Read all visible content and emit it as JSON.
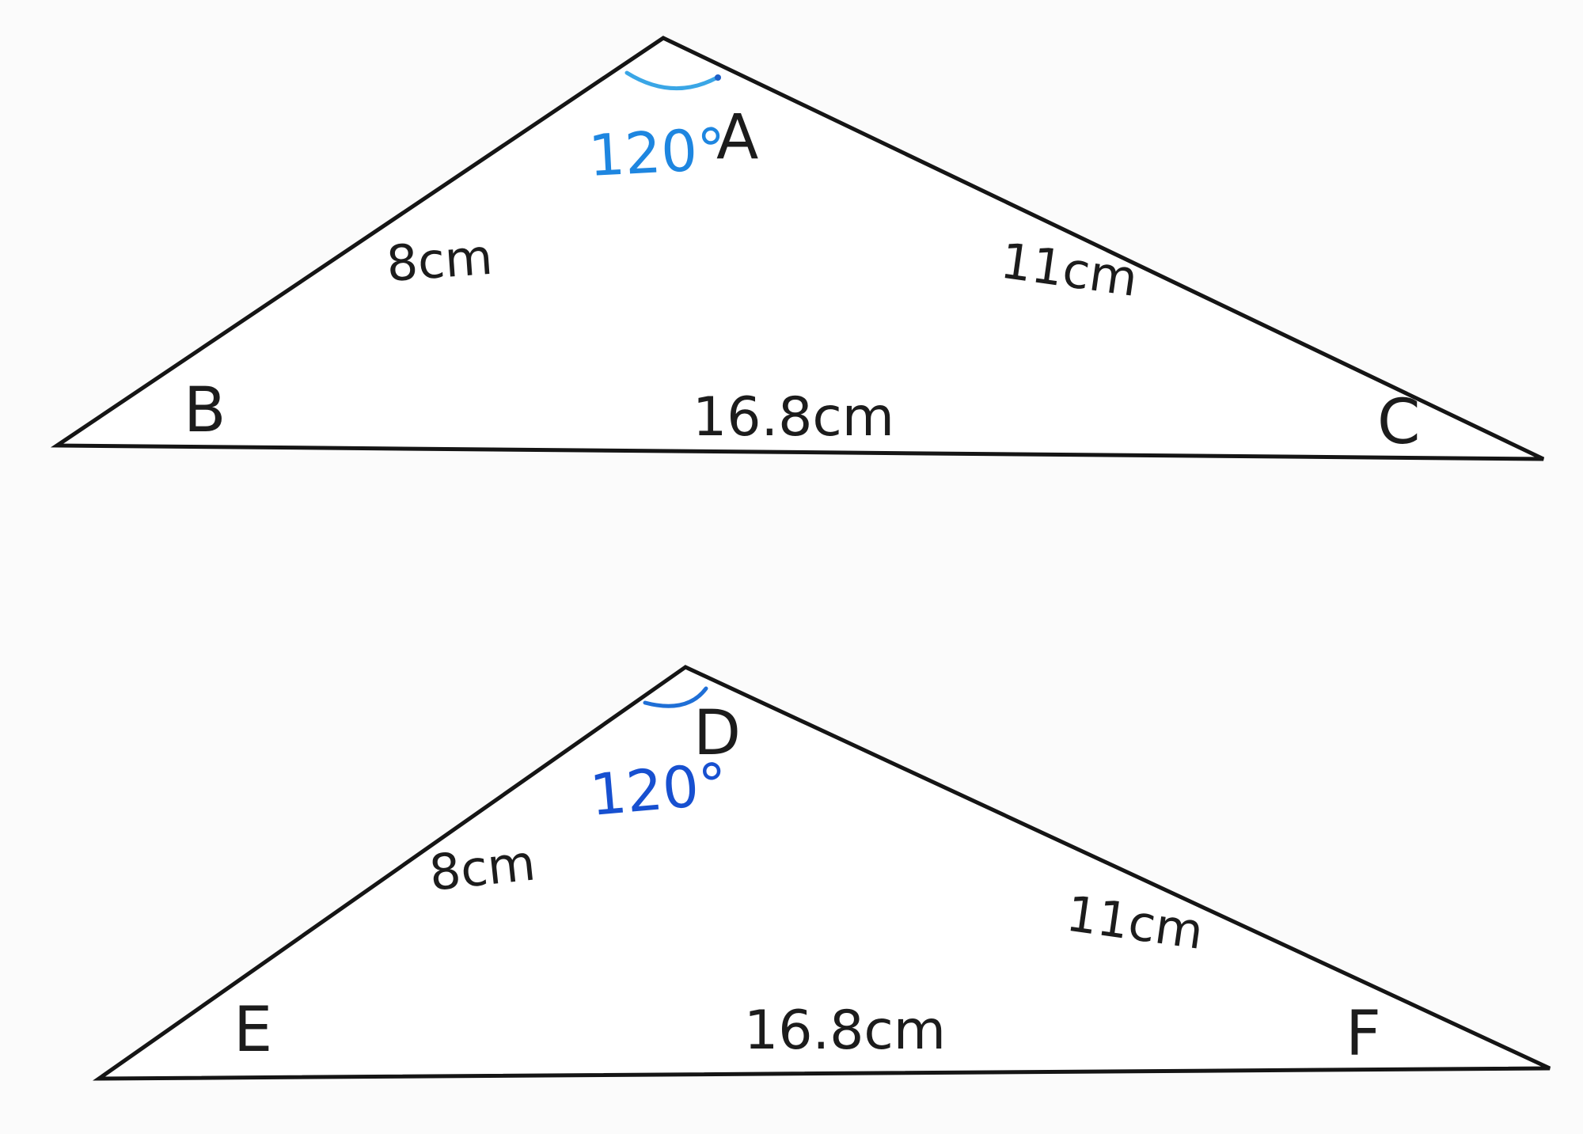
{
  "colors": {
    "background": "#fbfbfb",
    "edge": "#151515",
    "text": "#1c1c1c",
    "angle_top": "#1e86e0",
    "angle_bottom": "#1750d0"
  },
  "triangles": [
    {
      "vertices": {
        "apex": "A",
        "left": "B",
        "right": "C"
      },
      "angle_label": "120°",
      "sides": {
        "left": "8cm",
        "right": "11cm",
        "base": "16.8cm"
      }
    },
    {
      "vertices": {
        "apex": "D",
        "left": "E",
        "right": "F"
      },
      "angle_label": "120°",
      "sides": {
        "left": "8cm",
        "right": "11cm",
        "base": "16.8cm"
      }
    }
  ]
}
